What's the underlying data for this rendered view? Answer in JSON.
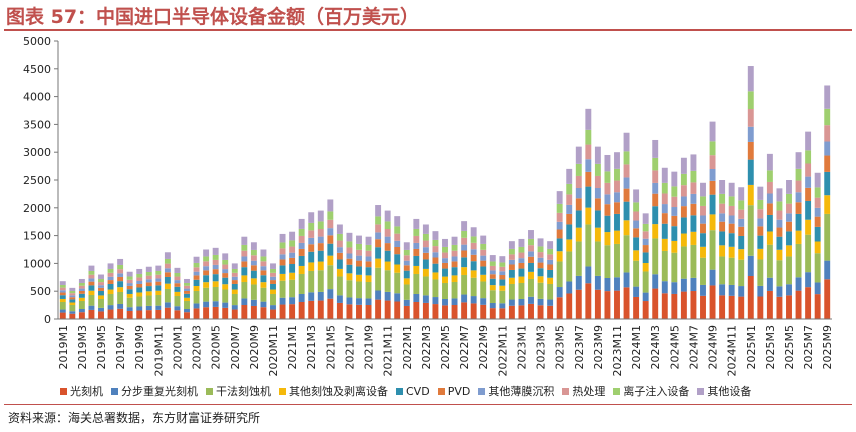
{
  "title": "图表 57：中国进口半导体设备金额（百万美元）",
  "source": "资料来源：海关总署数据，东方财富证券研究所",
  "colors": [
    "#d9532c",
    "#4f81bd",
    "#9bbb59",
    "#f5b90a",
    "#2e8fae",
    "#e07a3c",
    "#7f9ccf",
    "#d99694",
    "#9fcf6f",
    "#b1a0c7"
  ],
  "chart_data": {
    "type": "bar",
    "stacked": true,
    "ylim": [
      0,
      5000
    ],
    "yticks": [
      0,
      500,
      1000,
      1500,
      2000,
      2500,
      3000,
      3500,
      4000,
      4500,
      5000
    ],
    "grid": false,
    "legend_position": "bottom",
    "categories": [
      "2019M1",
      "2019M2",
      "2019M3",
      "2019M4",
      "2019M5",
      "2019M6",
      "2019M7",
      "2019M8",
      "2019M9",
      "2019M10",
      "2019M11",
      "2019M12",
      "2020M1",
      "2020M2",
      "2020M3",
      "2020M4",
      "2020M5",
      "2020M6",
      "2020M7",
      "2020M8",
      "2020M9",
      "2020M10",
      "2020M11",
      "2020M12",
      "2021M1",
      "2021M2",
      "2021M3",
      "2021M4",
      "2021M5",
      "2021M6",
      "2021M7",
      "2021M8",
      "2021M9",
      "2021M10",
      "2021M11",
      "2021M12",
      "2022M1",
      "2022M2",
      "2022M3",
      "2022M4",
      "2022M5",
      "2022M6",
      "2022M7",
      "2022M8",
      "2022M9",
      "2022M10",
      "2022M11",
      "2022M12",
      "2023M1",
      "2023M2",
      "2023M3",
      "2023M4",
      "2023M5",
      "2023M6",
      "2023M7",
      "2023M8",
      "2023M9",
      "2023M10",
      "2023M11",
      "2023M12",
      "2024M1",
      "2024M2",
      "2024M3",
      "2024M4",
      "2024M5",
      "2024M6",
      "2024M7",
      "2024M8",
      "2024M9",
      "2024M10",
      "2024M11",
      "2024M12",
      "2025M1",
      "2025M2",
      "2025M3",
      "2025M4",
      "2025M5",
      "2025M6",
      "2025M7",
      "2025M8",
      "2025M9"
    ],
    "tick_labels": [
      "2019M1",
      "2019M3",
      "2019M5",
      "2019M7",
      "2019M9",
      "2019M11",
      "2020M1",
      "2020M3",
      "2020M5",
      "2020M7",
      "2020M9",
      "2020M11",
      "2021M1",
      "2021M3",
      "2021M5",
      "2021M7",
      "2021M9",
      "2021M11",
      "2022M1",
      "2022M3",
      "2022M5",
      "2022M7",
      "2022M9",
      "2022M11",
      "2023M1",
      "2023M3",
      "2023M5",
      "2023M7",
      "2023M9",
      "2023M11",
      "2024M1",
      "2024M3",
      "2024M5",
      "2024M7",
      "2024M9",
      "2024M11",
      "2025M1",
      "2025M3",
      "2025M5",
      "2025M7",
      "2025M9"
    ],
    "totals": [
      680,
      560,
      720,
      960,
      800,
      1000,
      1080,
      850,
      900,
      940,
      960,
      1200,
      920,
      720,
      1120,
      1250,
      1280,
      1180,
      1000,
      1480,
      1380,
      1250,
      1000,
      1530,
      1570,
      1800,
      1920,
      1950,
      2150,
      1700,
      1550,
      1500,
      1480,
      2050,
      1950,
      1850,
      1380,
      1800,
      1700,
      1580,
      1440,
      1480,
      1760,
      1650,
      1500,
      1150,
      1130,
      1400,
      1440,
      1600,
      1450,
      1400,
      2300,
      2700,
      3100,
      3780,
      3100,
      2950,
      3000,
      3350,
      2330,
      1900,
      3220,
      2720,
      2650,
      2900,
      2960,
      2450,
      3550,
      2500,
      2450,
      2370,
      4550,
      2380,
      2970,
      2350,
      2500,
      3000,
      3370,
      2630,
      4200
    ],
    "series": [
      {
        "name": "光刻机",
        "share": 0.17
      },
      {
        "name": "分步重复光刻机",
        "share": 0.08
      },
      {
        "name": "干法刻蚀机",
        "share": 0.2
      },
      {
        "name": "其他刻蚀及剥离设备",
        "share": 0.08
      },
      {
        "name": "CVD",
        "share": 0.1
      },
      {
        "name": "PVD",
        "share": 0.07
      },
      {
        "name": "其他薄膜沉积",
        "share": 0.06
      },
      {
        "name": "热处理",
        "share": 0.07
      },
      {
        "name": "离子注入设备",
        "share": 0.07
      },
      {
        "name": "其他设备",
        "share": 0.1
      }
    ]
  }
}
